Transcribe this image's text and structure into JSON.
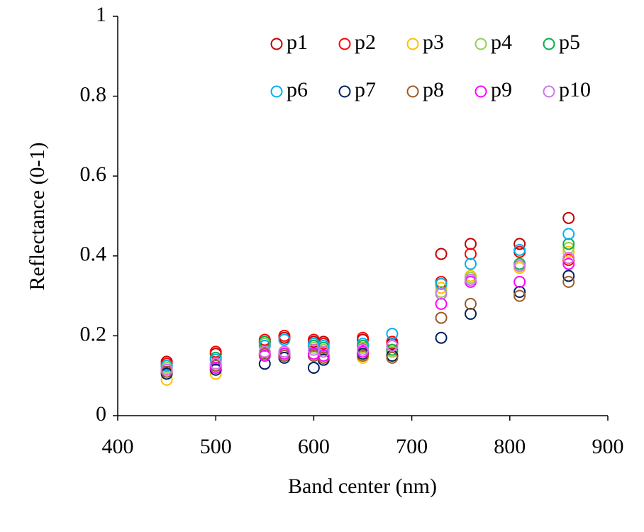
{
  "chart_data": {
    "type": "scatter",
    "x_label": "Band center (nm)",
    "y_label": "Reflectance (0-1)",
    "x": [
      450,
      500,
      550,
      570,
      600,
      610,
      650,
      680,
      730,
      760,
      810,
      860
    ],
    "xlim": [
      400,
      900
    ],
    "xticks": [
      400,
      500,
      600,
      700,
      800,
      900
    ],
    "ylim": [
      0,
      1
    ],
    "yticks": [
      0,
      0.2,
      0.4,
      0.6,
      0.8,
      1
    ],
    "grid": false,
    "legend": "top-right",
    "series": [
      {
        "name": "p1",
        "color": "#c00000",
        "values": [
          0.135,
          0.155,
          0.185,
          0.195,
          0.185,
          0.185,
          0.19,
          0.18,
          0.405,
          0.43,
          0.43,
          0.495
        ]
      },
      {
        "name": "p2",
        "color": "#ff0000",
        "values": [
          0.13,
          0.16,
          0.19,
          0.2,
          0.19,
          0.18,
          0.195,
          0.185,
          0.335,
          0.405,
          0.41,
          0.39
        ]
      },
      {
        "name": "p3",
        "color": "#ffc000",
        "values": [
          0.09,
          0.105,
          0.155,
          0.15,
          0.15,
          0.15,
          0.145,
          0.15,
          0.32,
          0.35,
          0.37,
          0.41
        ]
      },
      {
        "name": "p4",
        "color": "#92d050",
        "values": [
          0.12,
          0.14,
          0.18,
          0.16,
          0.17,
          0.165,
          0.17,
          0.16,
          0.31,
          0.345,
          0.375,
          0.42
        ]
      },
      {
        "name": "p5",
        "color": "#00b050",
        "values": [
          0.125,
          0.145,
          0.185,
          0.16,
          0.175,
          0.17,
          0.175,
          0.165,
          0.33,
          0.34,
          0.38,
          0.43
        ]
      },
      {
        "name": "p6",
        "color": "#00b0f0",
        "values": [
          0.125,
          0.14,
          0.175,
          0.19,
          0.18,
          0.175,
          0.18,
          0.205,
          0.33,
          0.38,
          0.415,
          0.455
        ]
      },
      {
        "name": "p7",
        "color": "#002060",
        "values": [
          0.105,
          0.115,
          0.13,
          0.145,
          0.12,
          0.14,
          0.155,
          0.15,
          0.195,
          0.255,
          0.31,
          0.35
        ]
      },
      {
        "name": "p8",
        "color": "#9c5b28",
        "values": [
          0.11,
          0.125,
          0.155,
          0.15,
          0.15,
          0.145,
          0.15,
          0.145,
          0.245,
          0.28,
          0.3,
          0.335
        ]
      },
      {
        "name": "p9",
        "color": "#ff00ff",
        "values": [
          0.115,
          0.12,
          0.15,
          0.155,
          0.155,
          0.15,
          0.16,
          0.175,
          0.28,
          0.335,
          0.335,
          0.38
        ]
      },
      {
        "name": "p10",
        "color": "#cc77ee",
        "values": [
          0.115,
          0.13,
          0.16,
          0.16,
          0.165,
          0.16,
          0.165,
          0.175,
          0.305,
          0.34,
          0.375,
          0.395
        ]
      }
    ]
  }
}
